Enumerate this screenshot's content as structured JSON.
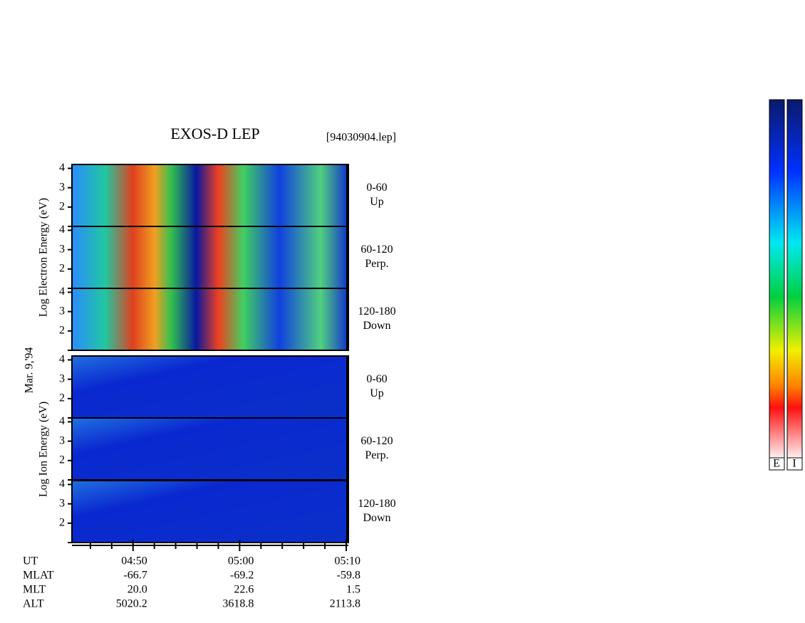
{
  "chart_data": {
    "type": "spectrogram",
    "title": "EXOS-D LEP",
    "file": "[94030904.lep]",
    "date": "Mar. 9,'94",
    "groups": [
      {
        "ylabel": "Log  Electron  Energy (eV)",
        "colorbar": "E",
        "panels": [
          {
            "range": "0-60",
            "direction": "Up"
          },
          {
            "range": "60-120",
            "direction": "Perp."
          },
          {
            "range": "120-180",
            "direction": "Down"
          }
        ]
      },
      {
        "ylabel": "Log  Ion  Energy (eV)",
        "colorbar": "I",
        "panels": [
          {
            "range": "0-60",
            "direction": "Up"
          },
          {
            "range": "60-120",
            "direction": "Perp."
          },
          {
            "range": "120-180",
            "direction": "Down"
          }
        ]
      }
    ],
    "ylim": [
      1,
      4.2
    ],
    "yticks": [
      2,
      3,
      4
    ],
    "minor_yticks": [
      1
    ],
    "xlim": [
      284.27,
      310.2
    ],
    "xticks": [
      {
        "value": 290,
        "label": "04:50"
      },
      {
        "value": 300,
        "label": "05:00"
      },
      {
        "value": 310,
        "label": "05:10"
      }
    ],
    "minor_xticks": [
      286,
      288,
      292,
      294,
      296,
      298,
      302,
      304,
      306,
      308
    ],
    "ephemeris": {
      "labels": [
        "UT",
        "MLAT",
        "MLT",
        "ALT"
      ],
      "rows": [
        [
          "-66.7",
          "-69.2",
          "-59.8"
        ],
        [
          "20.0",
          "22.6",
          "1.5"
        ],
        [
          "5020.2",
          "3618.8",
          "2113.8"
        ]
      ]
    }
  }
}
